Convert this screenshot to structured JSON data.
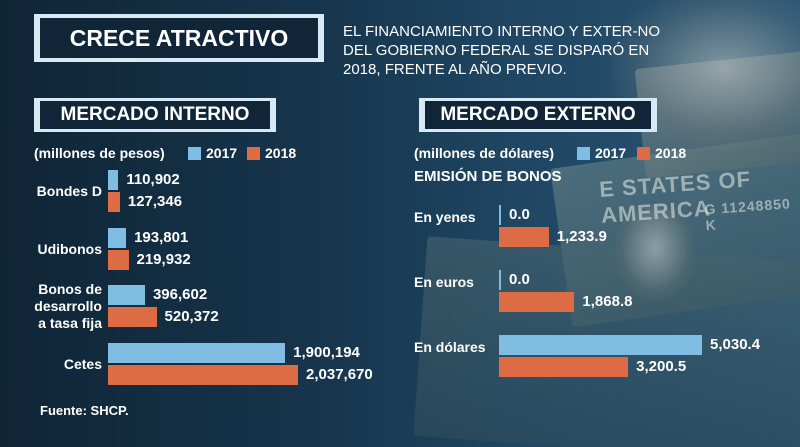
{
  "header": {
    "title": "CRECE ATRACTIVO",
    "intro": "EL FINANCIAMIENTO INTERNO Y EXTER-NO DEL GOBIERNO FEDERAL SE DISPARÓ EN 2018, FRENTE AL AÑO PREVIO."
  },
  "background": {
    "note_text": "E STATES OF AMERICA",
    "serial": "G 11248850 K"
  },
  "colors": {
    "y2017": "#7fbde2",
    "y2018": "#dd6b43"
  },
  "chart_data": [
    {
      "type": "bar",
      "orientation": "horizontal",
      "title": "MERCADO INTERNO",
      "units": "(millones de pesos)",
      "legend": [
        "2017",
        "2018"
      ],
      "categories": [
        "Bondes D",
        "Udibonos",
        "Bonos de desarrollo a tasa fija",
        "Cetes"
      ],
      "category_labels": [
        [
          "Bondes D"
        ],
        [
          "Udibonos"
        ],
        [
          "Bonos de",
          "desarrollo",
          "a tasa fija"
        ],
        [
          "Cetes"
        ]
      ],
      "series": [
        {
          "name": "2017",
          "values": [
            110902,
            193801,
            396602,
            1900194
          ],
          "labels": [
            "110,902",
            "193,801",
            "396,602",
            "1,900,194"
          ]
        },
        {
          "name": "2018",
          "values": [
            127346,
            219932,
            520372,
            2037670
          ],
          "labels": [
            "127,346",
            "219,932",
            "520,372",
            "2,037,670"
          ]
        }
      ],
      "source": "Fuente: SHCP."
    },
    {
      "type": "bar",
      "orientation": "horizontal",
      "title": "MERCADO EXTERNO",
      "units": "(millones de dólares)",
      "subtitle": "EMISIÓN DE BONOS",
      "legend": [
        "2017",
        "2018"
      ],
      "categories": [
        "En yenes",
        "En euros",
        "En dólares"
      ],
      "series": [
        {
          "name": "2017",
          "values": [
            0.0,
            0.0,
            5030.4
          ],
          "labels": [
            "0.0",
            "0.0",
            "5,030.4"
          ]
        },
        {
          "name": "2018",
          "values": [
            1233.9,
            1868.8,
            3200.5
          ],
          "labels": [
            "1,233.9",
            "1,868.8",
            "3,200.5"
          ]
        }
      ]
    }
  ]
}
